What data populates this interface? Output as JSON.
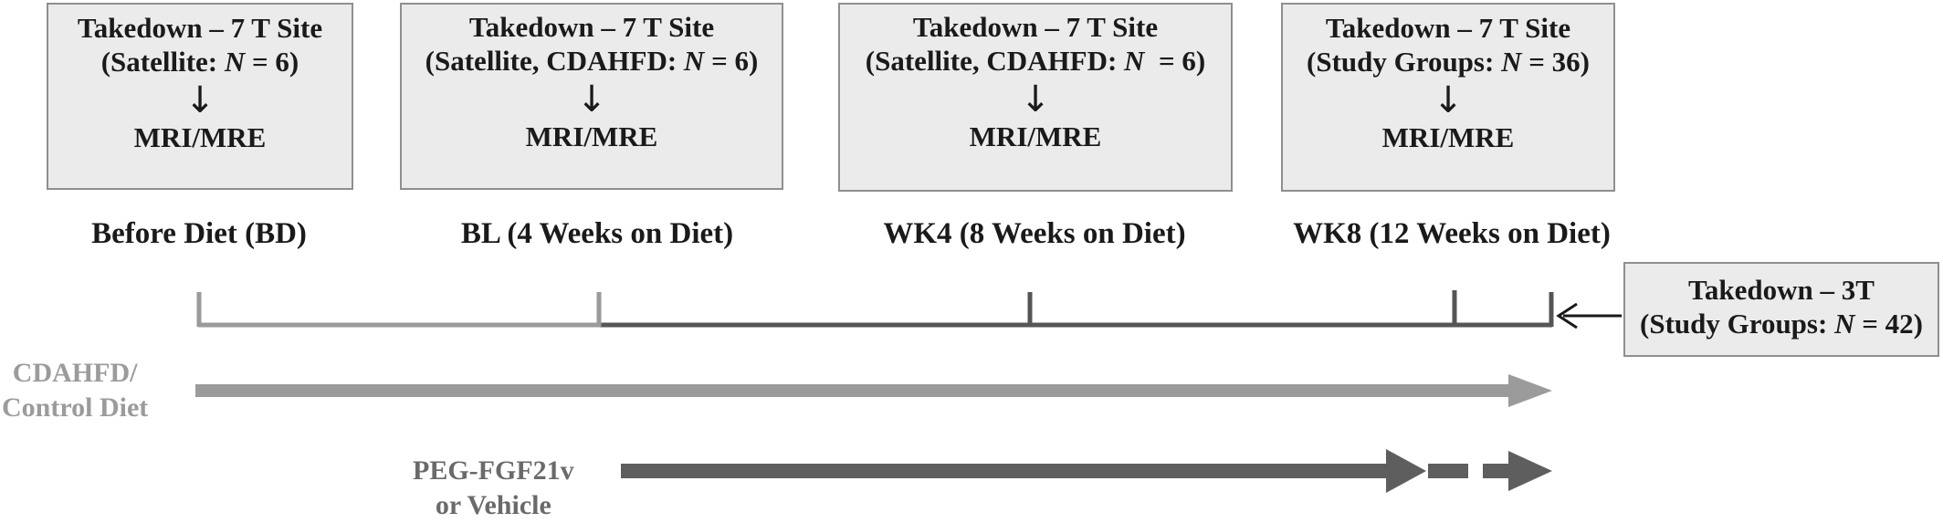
{
  "boxes": [
    {
      "title": "Takedown – 7 T Site",
      "sub_pre": "(Satellite: ",
      "n_label": "N",
      "sub_post": " = 6)",
      "result": "MRI/MRE"
    },
    {
      "title": "Takedown – 7 T Site",
      "sub_pre": "(Satellite, CDAHFD: ",
      "n_label": "N",
      "sub_post": " = 6)",
      "result": "MRI/MRE"
    },
    {
      "title": "Takedown – 7 T Site",
      "sub_pre": "(Satellite, CDAHFD: ",
      "n_label": "N",
      "sub_post": "  = 6)",
      "result": "MRI/MRE"
    },
    {
      "title": "Takedown – 7 T Site",
      "sub_pre": "(Study Groups: ",
      "n_label": "N",
      "sub_post": " = 36)",
      "result": "MRI/MRE"
    }
  ],
  "phases": [
    "Before Diet (BD)",
    "BL (4 Weeks on Diet)",
    "WK4 (8 Weeks on Diet)",
    "WK8 (12 Weeks on Diet)"
  ],
  "final_box": {
    "title": "Takedown – 3T",
    "sub_pre": "(Study Groups: ",
    "n_label": "N",
    "sub_post": " = 42)"
  },
  "diet_label": {
    "line1": "CDAHFD/",
    "line2": "Control Diet"
  },
  "treatment_label": {
    "line1": "PEG-FGF21v",
    "line2": "or Vehicle"
  },
  "colors": {
    "box_fill": "#ebebeb",
    "box_border": "#8f8f8f",
    "timeline_early": "#9a9a9a",
    "timeline_late": "#555555",
    "diet_arrow": "#9b9b9b",
    "diet_label": "#9b9b9b",
    "treatment_arrow": "#5e5e5e",
    "treatment_label": "#6a6a6a",
    "text": "#1a1a1a"
  }
}
